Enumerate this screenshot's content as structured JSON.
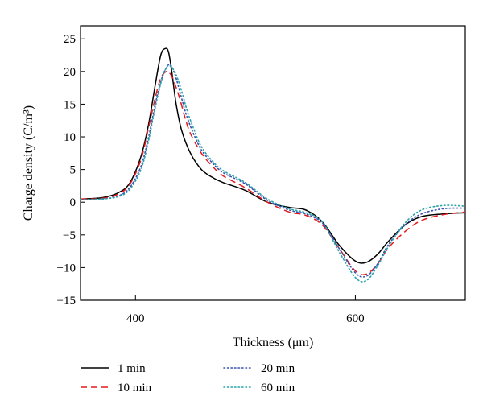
{
  "chart_data": {
    "type": "line",
    "xlabel": "Thickness (μm)",
    "ylabel": "Charge density (C/m³)",
    "xlim": [
      350,
      700
    ],
    "ylim": [
      -15,
      27
    ],
    "xticks": [
      400,
      600
    ],
    "yticks": [
      -15,
      -10,
      -5,
      0,
      5,
      10,
      15,
      20,
      25
    ],
    "grid": false,
    "legend_position": "bottom",
    "series": [
      {
        "name": "1 min",
        "color": "#000000",
        "dash": "solid",
        "x": [
          350,
          370,
          385,
          395,
          405,
          412,
          418,
          423,
          427,
          430,
          433,
          437,
          442,
          450,
          460,
          470,
          480,
          500,
          520,
          540,
          555,
          570,
          585,
          600,
          610,
          620,
          630,
          645,
          660,
          680,
          700
        ],
        "y": [
          0.5,
          0.7,
          1.5,
          3.0,
          7.0,
          12.0,
          18.0,
          22.5,
          23.5,
          23.0,
          20.0,
          15.0,
          11.0,
          7.5,
          5.0,
          3.8,
          3.0,
          1.8,
          0.0,
          -0.8,
          -1.2,
          -3.0,
          -6.5,
          -9.0,
          -9.2,
          -8.0,
          -6.0,
          -3.5,
          -2.2,
          -1.8,
          -1.6
        ]
      },
      {
        "name": "10 min",
        "color": "#e41a1c",
        "dash": "dashed",
        "x": [
          350,
          370,
          385,
          395,
          405,
          412,
          418,
          423,
          428,
          431,
          435,
          440,
          445,
          450,
          460,
          470,
          480,
          500,
          520,
          540,
          555,
          570,
          585,
          600,
          610,
          620,
          630,
          645,
          660,
          680,
          700
        ],
        "y": [
          0.5,
          0.6,
          1.3,
          2.8,
          6.5,
          11.5,
          16.0,
          19.0,
          20.0,
          19.8,
          18.5,
          16.0,
          13.0,
          10.5,
          7.5,
          5.5,
          4.0,
          2.2,
          0.0,
          -1.5,
          -2.0,
          -3.5,
          -7.0,
          -10.5,
          -11.0,
          -9.5,
          -7.0,
          -4.5,
          -2.8,
          -1.9,
          -1.5
        ]
      },
      {
        "name": "20 min",
        "color": "#3a4fb0",
        "dash": "dotted",
        "x": [
          350,
          370,
          385,
          395,
          405,
          412,
          418,
          424,
          429,
          432,
          436,
          441,
          446,
          452,
          460,
          470,
          480,
          500,
          520,
          540,
          555,
          570,
          585,
          600,
          610,
          620,
          630,
          645,
          660,
          680,
          700
        ],
        "y": [
          0.4,
          0.5,
          1.0,
          2.3,
          5.5,
          10.0,
          15.0,
          19.0,
          20.8,
          21.0,
          19.5,
          16.5,
          13.5,
          10.8,
          8.0,
          6.0,
          4.5,
          2.8,
          0.3,
          -1.2,
          -1.8,
          -3.2,
          -7.0,
          -10.8,
          -11.3,
          -9.5,
          -6.5,
          -3.5,
          -1.8,
          -1.0,
          -0.9
        ]
      },
      {
        "name": "60 min",
        "color": "#2aa3a8",
        "dash": "dotted",
        "x": [
          350,
          370,
          385,
          395,
          405,
          412,
          418,
          424,
          429,
          433,
          437,
          442,
          447,
          453,
          460,
          470,
          480,
          500,
          520,
          540,
          555,
          570,
          585,
          600,
          610,
          620,
          630,
          645,
          660,
          680,
          700
        ],
        "y": [
          0.4,
          0.5,
          0.9,
          2.0,
          5.0,
          9.5,
          14.5,
          18.8,
          20.8,
          20.6,
          19.5,
          17.0,
          14.0,
          11.2,
          8.5,
          6.3,
          4.8,
          3.0,
          0.5,
          -1.0,
          -1.6,
          -3.0,
          -7.5,
          -11.5,
          -12.0,
          -9.8,
          -6.8,
          -3.2,
          -1.2,
          -0.5,
          -0.6
        ]
      }
    ]
  }
}
